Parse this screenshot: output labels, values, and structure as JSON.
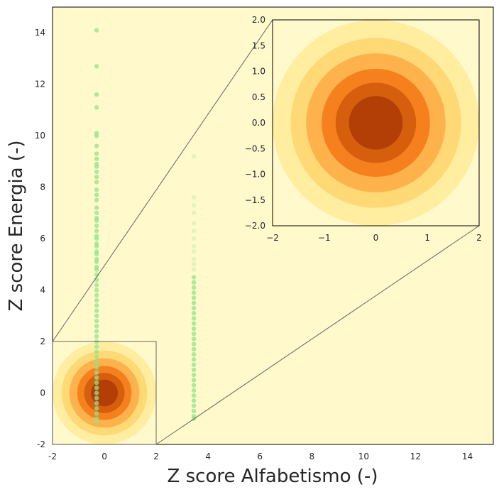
{
  "chart_data": {
    "type": "contour+scatter",
    "xlabel": "Z score Alfabetismo  (-)",
    "ylabel": "Z score Energia (-)",
    "xlim": [
      -2,
      15
    ],
    "ylim": [
      -2,
      15
    ],
    "xticks": [
      "-2",
      "0",
      "2",
      "4",
      "6",
      "8",
      "10",
      "12",
      "14"
    ],
    "yticks": [
      "-2",
      "0",
      "2",
      "4",
      "6",
      "8",
      "10",
      "12",
      "14"
    ],
    "background_color": "#fff9cc",
    "contour": {
      "center": [
        0,
        0
      ],
      "levels": [
        2.0,
        1.65,
        1.35,
        1.05,
        0.78,
        0.52
      ],
      "colors": [
        "#ffeda0",
        "#fed976",
        "#feb24c",
        "#f7801e",
        "#d65f0e",
        "#b33e06",
        "#7f2704"
      ]
    },
    "scatter": {
      "color": "#8fe58a",
      "series": [
        {
          "x": -0.3,
          "y": [
            14.1,
            12.7,
            11.6,
            11.1,
            10.1,
            10.0,
            9.6,
            9.3,
            9.1,
            8.9,
            8.8,
            8.6,
            8.4,
            8.2,
            7.9,
            7.7,
            7.5,
            7.2,
            7.0,
            6.8,
            6.7,
            6.5,
            6.3,
            6.1,
            6.0,
            5.8,
            5.7,
            5.5,
            5.4,
            5.2,
            5.1,
            4.9,
            4.8,
            4.6,
            4.4,
            4.2,
            4.0,
            3.8,
            3.6,
            3.4,
            3.2,
            3.0,
            2.8,
            2.6,
            2.4,
            2.2,
            2.0,
            1.8,
            1.6,
            1.4,
            1.2,
            1.0,
            0.8,
            0.6,
            0.4,
            0.2,
            0.0,
            -0.2,
            -0.4,
            -0.6,
            -0.8,
            -1.0,
            -1.1
          ]
        },
        {
          "x": 3.45,
          "y": [
            9.2,
            7.6,
            7.3,
            7.0,
            6.6,
            6.3,
            6.0,
            5.7,
            5.5,
            5.2,
            5.0,
            4.8,
            4.5,
            4.3,
            4.1,
            3.9,
            3.7,
            3.5,
            3.3,
            3.1,
            2.9,
            2.7,
            2.5,
            2.3,
            2.1,
            1.9,
            1.7,
            1.5,
            1.3,
            1.1,
            0.9,
            0.7,
            0.5,
            0.3,
            0.1,
            -0.1,
            -0.3,
            -0.5,
            -0.7,
            -0.9,
            -1.0
          ]
        }
      ]
    },
    "inset": {
      "xlim": [
        -2,
        2
      ],
      "ylim": [
        -2,
        2
      ],
      "xticks": [
        "−2",
        "−1",
        "0",
        "1",
        "2"
      ],
      "yticks": [
        "−2.0",
        "−1.5",
        "−1.0",
        "−0.5",
        "0.0",
        "0.5",
        "1.0",
        "1.5",
        "2.0"
      ],
      "zoom_box": [
        [
          -2,
          -2
        ],
        [
          2,
          2
        ]
      ]
    }
  }
}
